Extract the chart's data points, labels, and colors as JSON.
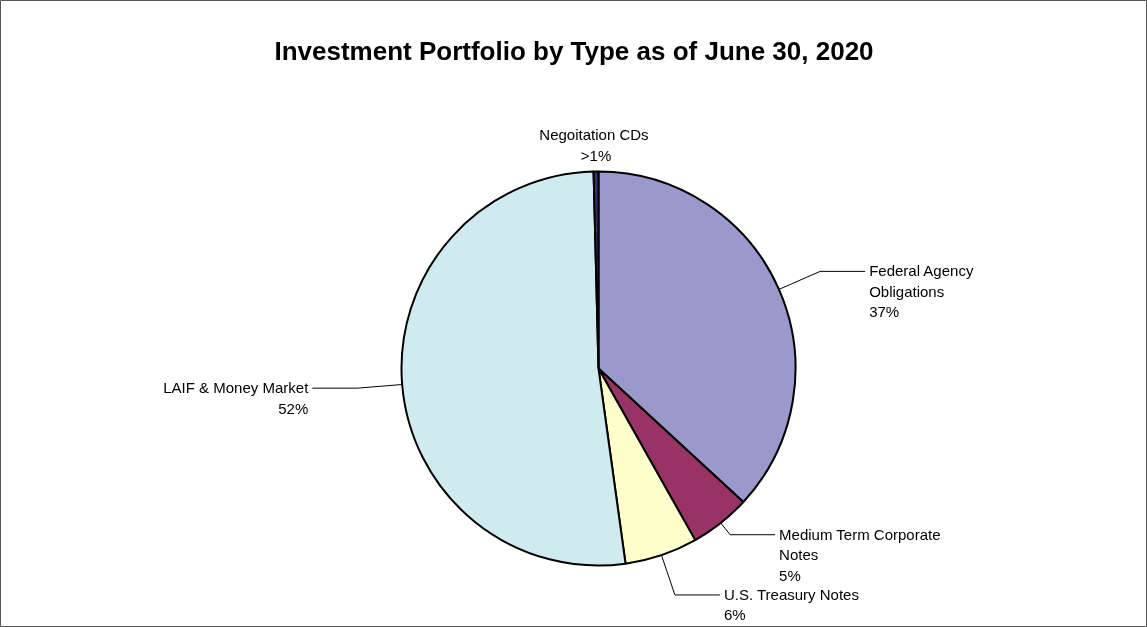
{
  "chart_data": {
    "type": "pie",
    "title": "Investment Portfolio by Type as of June 30, 2020",
    "categories": [
      "Federal Agency Obligations",
      "Medium Term Corporate Notes",
      "U.S. Treasury Notes",
      "LAIF & Money Market",
      "Negoitation  CDs"
    ],
    "values": [
      37,
      5,
      6,
      52,
      0.4
    ],
    "value_labels": [
      "37%",
      "5%",
      "6%",
      "52%",
      ">1%"
    ],
    "colors": [
      "#9999cc",
      "#993366",
      "#ffffcc",
      "#d0ebf0",
      "#333366"
    ]
  }
}
